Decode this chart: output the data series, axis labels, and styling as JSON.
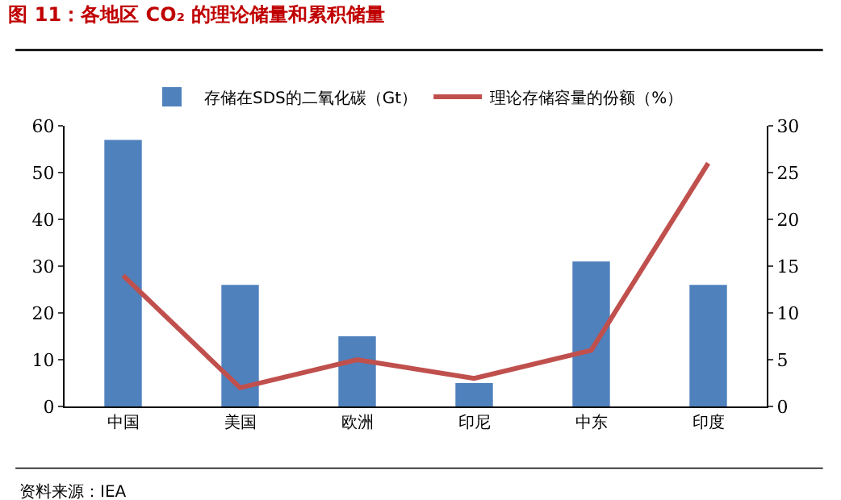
{
  "chart_data": {
    "type": "bar",
    "title": "图 11：各地区 CO₂ 的理论储量和累积储量",
    "categories": [
      "中国",
      "美国",
      "欧洲",
      "印尼",
      "中东",
      "印度"
    ],
    "series": [
      {
        "name": "存储在SDS的二氧化碳（Gt）",
        "color": "#4f81bd",
        "values": [
          57,
          26,
          15,
          5,
          31,
          26
        ]
      },
      {
        "name": "理论存储容量的份额（%）",
        "type": "line",
        "axis": "y2",
        "color": "#c0504d",
        "values": [
          14,
          2,
          5,
          3,
          6,
          26
        ]
      }
    ],
    "ylim": [
      0,
      60
    ],
    "yticks": [
      0,
      10,
      20,
      30,
      40,
      50,
      60
    ],
    "y2lim": [
      0,
      30
    ],
    "y2ticks": [
      0,
      5,
      10,
      15,
      20,
      25,
      30
    ],
    "legend": "top",
    "marker": "none",
    "annotations": [
      "资料来源：IEA"
    ]
  }
}
